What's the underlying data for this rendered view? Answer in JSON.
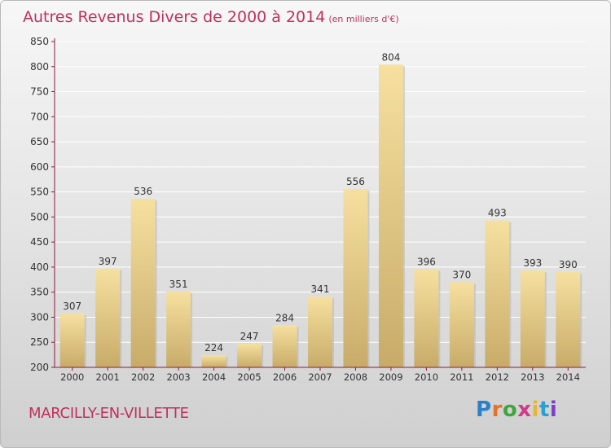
{
  "header": {
    "title": "Autres Revenus Divers de 2000 à 2014",
    "unit": "(en milliers d'€)"
  },
  "footer": {
    "place": "MARCILLY-EN-VILLETTE",
    "brand": "Proxiti"
  },
  "colors": {
    "title": "#c0305e",
    "bar_light": "#f4dc97",
    "bar_dark": "#c9ad6c",
    "axis": "#8a1a3c"
  },
  "chart_data": {
    "type": "bar",
    "title": "Autres Revenus Divers de 2000 à 2014",
    "subtitle": "(en milliers d'€)",
    "xlabel": "",
    "ylabel": "",
    "categories": [
      "2000",
      "2001",
      "2002",
      "2003",
      "2004",
      "2005",
      "2006",
      "2007",
      "2008",
      "2009",
      "2010",
      "2011",
      "2012",
      "2013",
      "2014"
    ],
    "values": [
      307,
      397,
      536,
      351,
      224,
      247,
      284,
      341,
      556,
      804,
      396,
      370,
      493,
      393,
      390
    ],
    "ylim": [
      200,
      850
    ],
    "yticks": [
      200,
      250,
      300,
      350,
      400,
      450,
      500,
      550,
      600,
      650,
      700,
      750,
      800,
      850
    ],
    "grid": true,
    "data_labels": true
  }
}
